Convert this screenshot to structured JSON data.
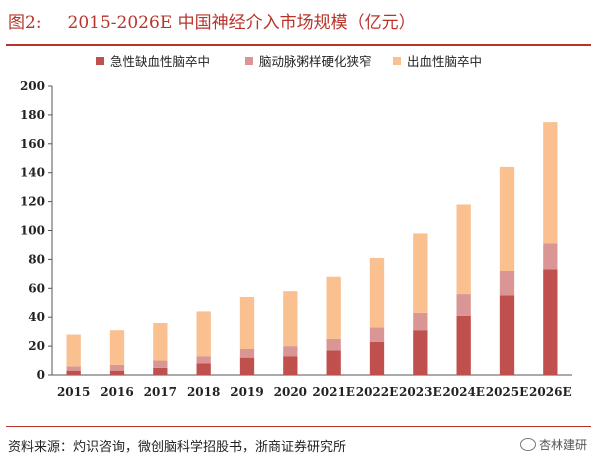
{
  "figure": {
    "label": "图2:",
    "title": "2015-2026E 中国神经介入市场规模（亿元）",
    "source": "资料来源：灼识咨询，微创脑科学招股书，浙商证券研究所",
    "watermark": "杏林建研"
  },
  "chart_data": {
    "type": "bar",
    "stacked": true,
    "title": "2015-2026E 中国神经介入市场规模（亿元）",
    "xlabel": "",
    "ylabel": "",
    "ylim": [
      0,
      200
    ],
    "yticks": [
      0,
      20,
      40,
      60,
      80,
      100,
      120,
      140,
      160,
      180,
      200
    ],
    "grid": false,
    "legend_position": "top",
    "categories": [
      "2015",
      "2016",
      "2017",
      "2018",
      "2019",
      "2020",
      "2021E",
      "2022E",
      "2023E",
      "2024E",
      "2025E",
      "2026E"
    ],
    "series": [
      {
        "name": "急性缺血性脑卒中",
        "color": "#c0504d",
        "values": [
          3,
          3,
          5,
          8,
          12,
          13,
          17,
          23,
          31,
          41,
          55,
          73
        ]
      },
      {
        "name": "脑动脉粥样硬化狭窄",
        "color": "#d99694",
        "values": [
          3,
          4,
          5,
          5,
          6,
          7,
          8,
          10,
          12,
          15,
          17,
          18
        ]
      },
      {
        "name": "出血性脑卒中",
        "color": "#fac090",
        "values": [
          22,
          24,
          26,
          31,
          36,
          38,
          43,
          48,
          55,
          62,
          72,
          84
        ]
      }
    ]
  }
}
